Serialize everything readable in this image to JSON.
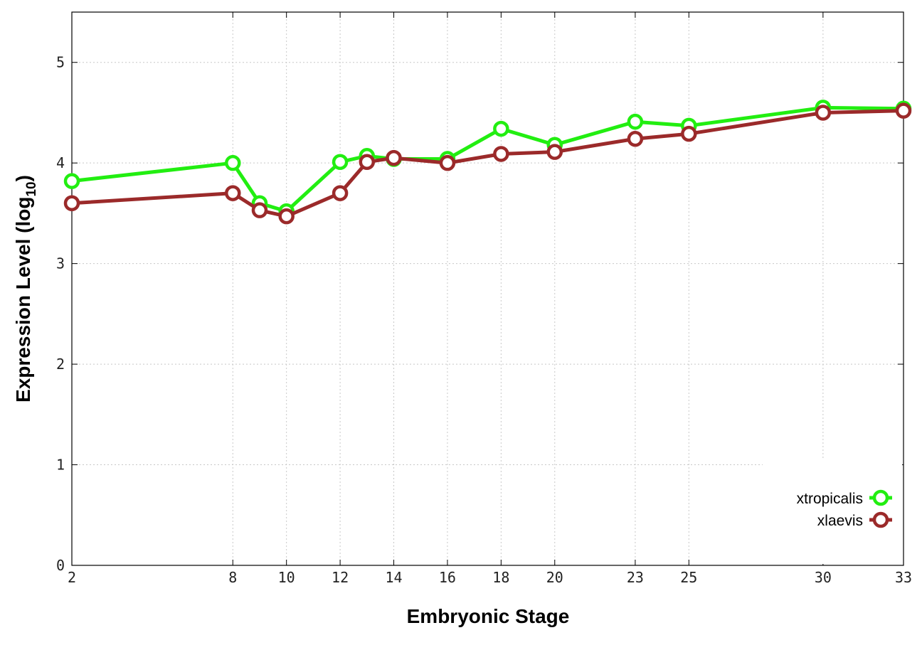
{
  "chart_data": {
    "type": "line",
    "xlabel": "Embryonic Stage",
    "ylabel": "Expression Level (log",
    "ylabel_subscript": "10",
    "ylabel_suffix": ")",
    "x": [
      2,
      8,
      9,
      10,
      12,
      13,
      14,
      16,
      18,
      20,
      23,
      25,
      30,
      33
    ],
    "xticks": [
      "2",
      "8",
      "10",
      "12",
      "14",
      "16",
      "18",
      "20",
      "23",
      "25",
      "30",
      "33"
    ],
    "yticks": [
      "0",
      "1",
      "2",
      "3",
      "4",
      "5"
    ],
    "xlim": [
      2,
      33
    ],
    "ylim": [
      0,
      5.5
    ],
    "grid": true,
    "legend_position": "bottom-right",
    "series": [
      {
        "name": "xtropicalis",
        "color": "#22ee11",
        "values": [
          3.82,
          4.0,
          3.6,
          3.52,
          4.01,
          4.07,
          4.04,
          4.04,
          4.34,
          4.18,
          4.41,
          4.37,
          4.55,
          4.54
        ]
      },
      {
        "name": "xlaevis",
        "color": "#9b2a2a",
        "values": [
          3.6,
          3.7,
          3.53,
          3.47,
          3.7,
          4.01,
          4.05,
          4.0,
          4.09,
          4.11,
          4.24,
          4.29,
          4.5,
          4.52
        ]
      }
    ]
  }
}
